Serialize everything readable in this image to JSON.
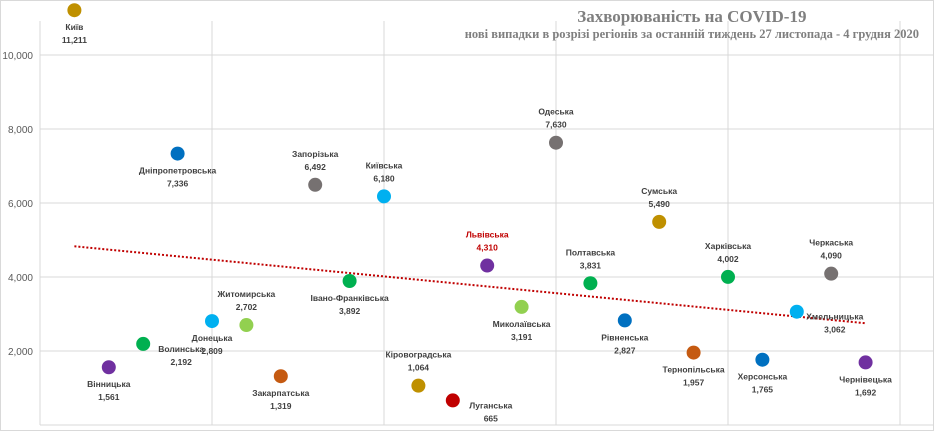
{
  "chart_data": {
    "type": "scatter",
    "title": "Захворюваність на COVID-19",
    "subtitle": "нові випадки  в розрізі регіонів за останній  тиждень 27 листопада - 4 грудня 2020",
    "xlim": [
      0,
      25
    ],
    "ylim": [
      0,
      11500
    ],
    "yticks": [
      2000,
      4000,
      6000,
      8000,
      10000
    ],
    "ytick_labels": [
      "2,000",
      "4,000",
      "6,000",
      "8,000",
      "10,000"
    ],
    "xgrid": [
      0,
      5,
      10,
      15,
      20,
      25
    ],
    "grid": true,
    "trendline": {
      "type": "linear",
      "style": "dotted",
      "color": "#C00000",
      "x": [
        1,
        24
      ],
      "y": [
        4830,
        2750
      ]
    },
    "points": [
      {
        "x": 1,
        "y": 11211,
        "name": "Київ",
        "value": "11,211",
        "color": "#BF9000",
        "label": "below"
      },
      {
        "x": 2,
        "y": 1561,
        "name": "Вінницька",
        "value": "1,561",
        "color": "#7030A0",
        "label": "below"
      },
      {
        "x": 3,
        "y": 2192,
        "name": "Волинська",
        "value": "2,192",
        "color": "#00B050",
        "label": "right"
      },
      {
        "x": 4,
        "y": 7336,
        "name": "Дніпропетровська",
        "value": "7,336",
        "color": "#0070C0",
        "label": "below"
      },
      {
        "x": 5,
        "y": 2809,
        "name": "Донецька",
        "value": "2,809",
        "color": "#00B0F0",
        "label": "below"
      },
      {
        "x": 6,
        "y": 2702,
        "name": "Житомирська",
        "value": "2,702",
        "color": "#92D050",
        "label": "above"
      },
      {
        "x": 7,
        "y": 1319,
        "name": "Закарпатська",
        "value": "1,319",
        "color": "#C55A11",
        "label": "below"
      },
      {
        "x": 8,
        "y": 6492,
        "name": "Запорізька",
        "value": "6,492",
        "color": "#767171",
        "label": "above"
      },
      {
        "x": 9,
        "y": 3892,
        "name": "Івано-Франківська",
        "value": "3,892",
        "color": "#00B050",
        "label": "below"
      },
      {
        "x": 10,
        "y": 6180,
        "name": "Київська",
        "value": "6,180",
        "color": "#00B0F0",
        "label": "above"
      },
      {
        "x": 11,
        "y": 1064,
        "name": "Кіровоградська",
        "value": "1,064",
        "color": "#BF9000",
        "label": "above"
      },
      {
        "x": 12,
        "y": 665,
        "name": "Луганська",
        "value": "665",
        "color": "#C00000",
        "label": "right"
      },
      {
        "x": 13,
        "y": 4310,
        "name": "Львівська",
        "value": "4,310",
        "color": "#7030A0",
        "label": "above",
        "label_color": "#C00000"
      },
      {
        "x": 14,
        "y": 3191,
        "name": "Миколаївська",
        "value": "3,191",
        "color": "#92D050",
        "label": "below"
      },
      {
        "x": 15,
        "y": 7630,
        "name": "Одеська",
        "value": "7,630",
        "color": "#767171",
        "label": "above"
      },
      {
        "x": 16,
        "y": 3831,
        "name": "Полтавська",
        "value": "3,831",
        "color": "#00B050",
        "label": "above"
      },
      {
        "x": 17,
        "y": 2827,
        "name": "Рівненська",
        "value": "2,827",
        "color": "#0070C0",
        "label": "below"
      },
      {
        "x": 18,
        "y": 5490,
        "name": "Сумська",
        "value": "5,490",
        "color": "#BF9000",
        "label": "above"
      },
      {
        "x": 19,
        "y": 1957,
        "name": "Тернопільська",
        "value": "1,957",
        "color": "#C55A11",
        "label": "below"
      },
      {
        "x": 20,
        "y": 4002,
        "name": "Харківська",
        "value": "4,002",
        "color": "#00B050",
        "label": "above"
      },
      {
        "x": 21,
        "y": 1765,
        "name": "Херсонська",
        "value": "1,765",
        "color": "#0070C0",
        "label": "below"
      },
      {
        "x": 22,
        "y": 3062,
        "name": "Хмельницька",
        "value": "3,062",
        "color": "#00B0F0",
        "label": "right"
      },
      {
        "x": 23,
        "y": 4090,
        "name": "Черкаська",
        "value": "4,090",
        "color": "#767171",
        "label": "above"
      },
      {
        "x": 24,
        "y": 1692,
        "name": "Чернівецька",
        "value": "1,692",
        "color": "#7030A0",
        "label": "below"
      }
    ]
  }
}
